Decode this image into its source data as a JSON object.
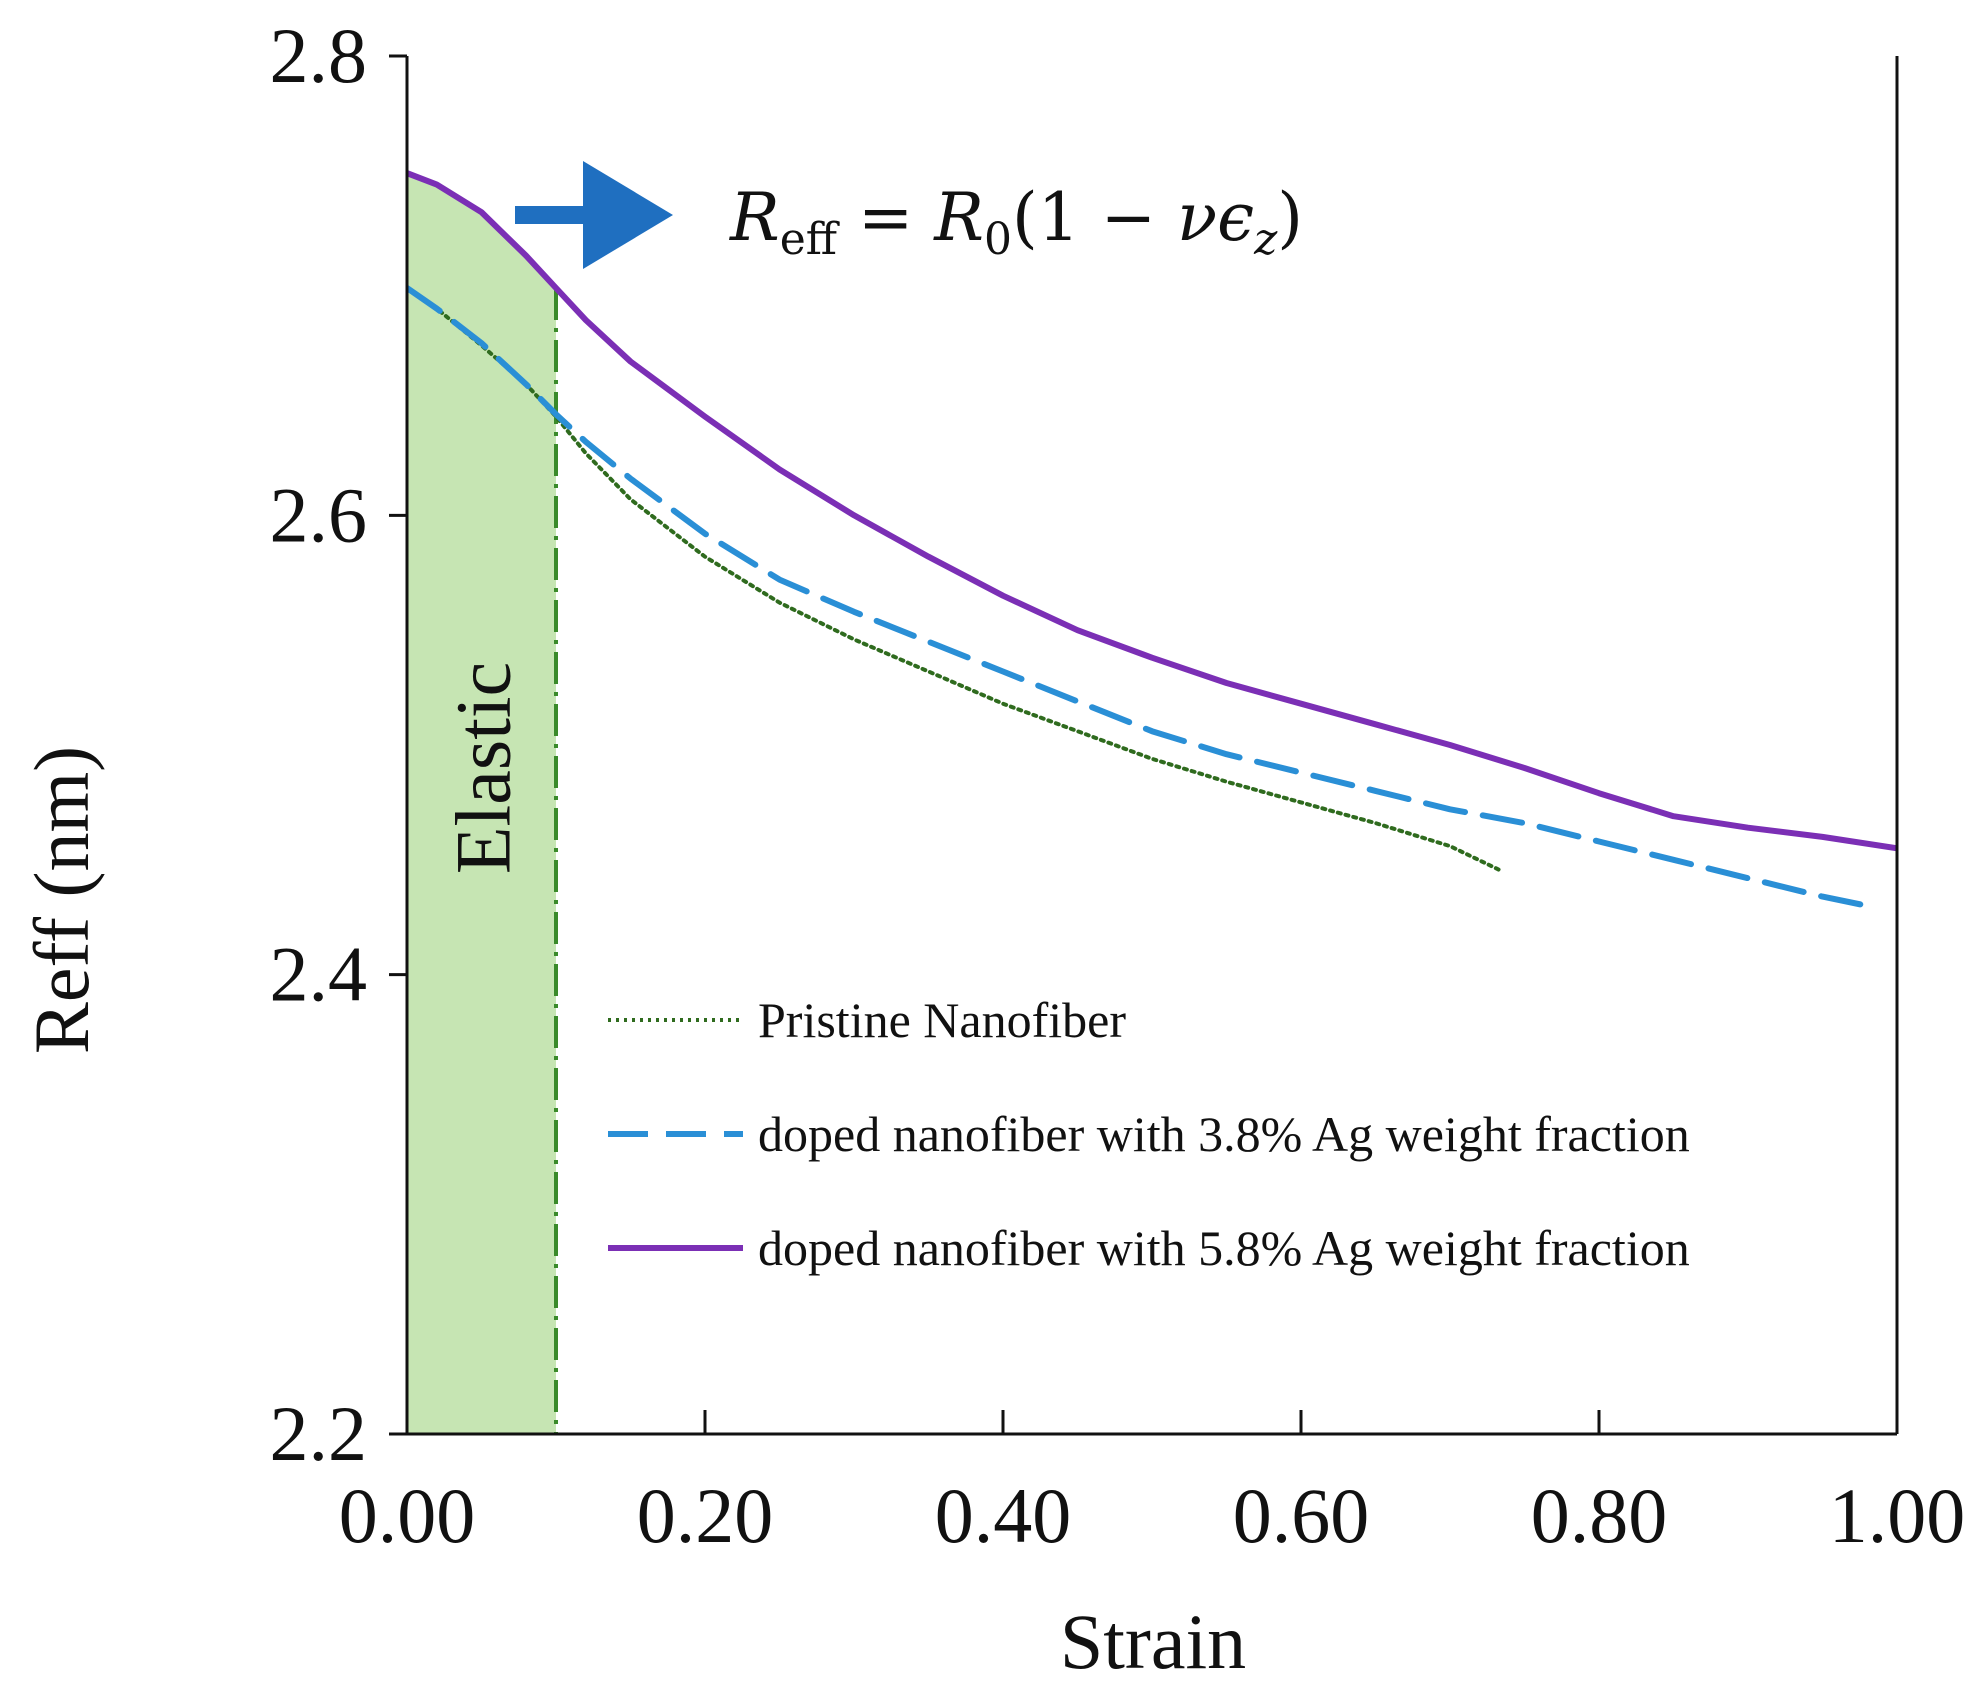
{
  "chart_data": {
    "type": "line",
    "title": "",
    "xlabel": "Strain",
    "ylabel": "Reff (nm)",
    "xlim": [
      0,
      1
    ],
    "ylim": [
      2.2,
      2.8
    ],
    "xticks": [
      0,
      0.2,
      0.4,
      0.6,
      0.8,
      1.0
    ],
    "xtick_labels": [
      "0.00",
      "0.20",
      "0.40",
      "0.60",
      "0.80",
      "1.00"
    ],
    "yticks": [
      2.2,
      2.4,
      2.6,
      2.8
    ],
    "ytick_labels": [
      "2.2",
      "2.4",
      "2.6",
      "2.8"
    ],
    "grid": false,
    "legend_position": "lower-right",
    "elastic_region": {
      "label": "Elastic",
      "x_start": 0,
      "x_end": 0.1,
      "fill": "#c6e5b3",
      "line_color": "#3a8a2a"
    },
    "annotation": {
      "arrow_color": "#1f6fc0",
      "base": "R",
      "sub": "eff",
      "equals": " = ",
      "r": "R",
      "r_sub": "0",
      "paren_open": "(1 − ",
      "nu": "ν",
      "eps": "ϵ",
      "eps_sub": "z",
      "paren_close": ")"
    },
    "series": [
      {
        "name": "Pristine Nanofiber",
        "color": "#2f6b1e",
        "style": "dotted",
        "x": [
          0,
          0.02,
          0.05,
          0.08,
          0.1,
          0.12,
          0.15,
          0.2,
          0.25,
          0.3,
          0.35,
          0.4,
          0.45,
          0.5,
          0.55,
          0.6,
          0.65,
          0.7,
          0.735
        ],
        "y": [
          2.699,
          2.69,
          2.674,
          2.657,
          2.643,
          2.627,
          2.607,
          2.582,
          2.562,
          2.546,
          2.532,
          2.518,
          2.506,
          2.494,
          2.484,
          2.475,
          2.466,
          2.456,
          2.445
        ]
      },
      {
        "name": "doped nanofiber with 3.8% Ag weight fraction",
        "color": "#2a8fd6",
        "style": "dashed",
        "x": [
          0,
          0.02,
          0.05,
          0.08,
          0.1,
          0.12,
          0.15,
          0.2,
          0.25,
          0.3,
          0.35,
          0.4,
          0.45,
          0.5,
          0.55,
          0.6,
          0.65,
          0.7,
          0.75,
          0.8,
          0.85,
          0.9,
          0.95,
          0.98
        ],
        "y": [
          2.699,
          2.69,
          2.675,
          2.657,
          2.644,
          2.632,
          2.616,
          2.592,
          2.572,
          2.558,
          2.545,
          2.532,
          2.519,
          2.506,
          2.496,
          2.488,
          2.48,
          2.472,
          2.466,
          2.458,
          2.45,
          2.442,
          2.434,
          2.43
        ]
      },
      {
        "name": "doped nanofiber with 5.8% Ag weight fraction",
        "color": "#7b2fb5",
        "style": "solid",
        "x": [
          0,
          0.02,
          0.05,
          0.08,
          0.1,
          0.12,
          0.15,
          0.2,
          0.25,
          0.3,
          0.35,
          0.4,
          0.45,
          0.5,
          0.55,
          0.6,
          0.65,
          0.7,
          0.75,
          0.8,
          0.85,
          0.9,
          0.95,
          1.0
        ],
        "y": [
          2.749,
          2.744,
          2.732,
          2.713,
          2.699,
          2.685,
          2.667,
          2.643,
          2.62,
          2.6,
          2.582,
          2.565,
          2.55,
          2.538,
          2.527,
          2.518,
          2.509,
          2.5,
          2.49,
          2.479,
          2.469,
          2.464,
          2.46,
          2.455
        ]
      }
    ]
  }
}
